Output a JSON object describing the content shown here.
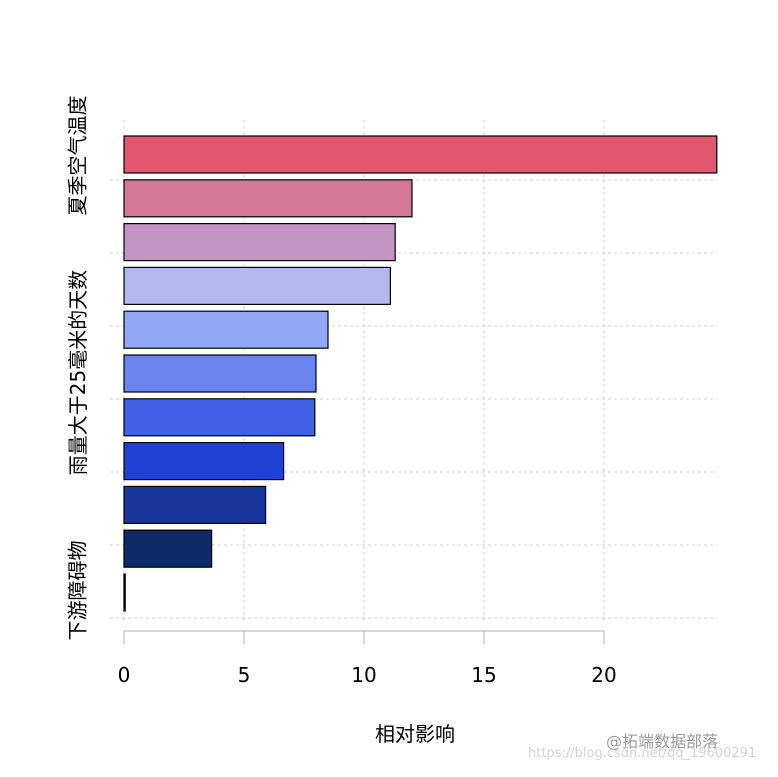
{
  "chart_data": {
    "type": "bar",
    "orientation": "horizontal",
    "title": "",
    "xlabel": "相对影响",
    "ylabel": "",
    "xlim": [
      0,
      25
    ],
    "x_ticks": [
      0,
      5,
      10,
      15,
      20
    ],
    "grid": true,
    "legend": null,
    "y_tick_labels_visible": [
      {
        "bar_index": 0,
        "label": "夏季空气温度"
      },
      {
        "bar_index": 5,
        "label": "雨量大于25毫米的天数"
      },
      {
        "bar_index": 10,
        "label": "下游障碍物"
      }
    ],
    "categories": [
      "夏季空气温度",
      "",
      "",
      "",
      "",
      "雨量大于25毫米的天数",
      "",
      "",
      "",
      "",
      "下游障碍物"
    ],
    "values": [
      24.7,
      12.0,
      11.3,
      11.1,
      8.5,
      8.0,
      7.95,
      6.65,
      5.9,
      3.65,
      0.05
    ],
    "colors": [
      "#e3566f",
      "#d27796",
      "#c295c4",
      "#b4b8ee",
      "#93a7f7",
      "#6a85ef",
      "#4060e8",
      "#2140d4",
      "#17359b",
      "#102a68",
      "#0c1f55"
    ]
  },
  "axis": {
    "x_tick_labels": [
      "0",
      "5",
      "10",
      "15",
      "20"
    ],
    "x_title": "相对影响"
  },
  "watermark": {
    "line1": "@拓端数据部落",
    "line2": "https://blog.csdn.net/qq_19600291"
  }
}
